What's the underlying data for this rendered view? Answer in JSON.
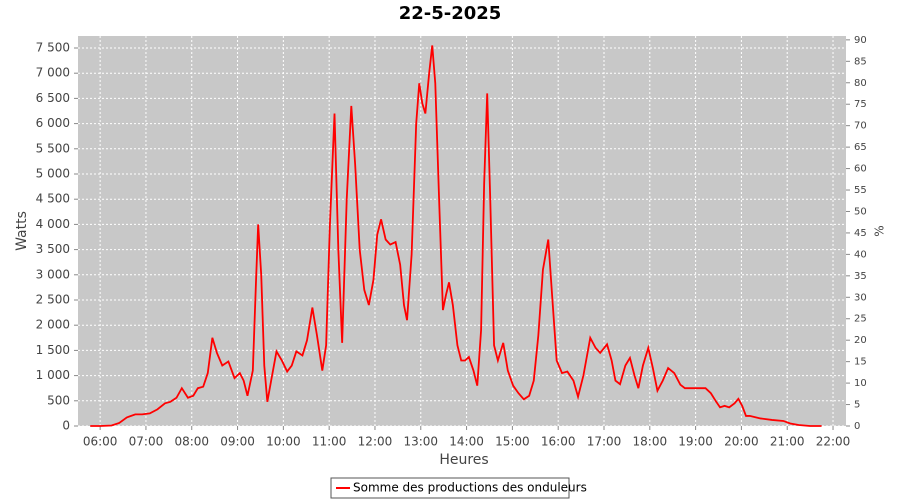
{
  "chart_data": {
    "type": "line",
    "title": "22-5-2025",
    "x_label": "Heures",
    "y_label": "Watts",
    "y2_label": "%",
    "x": [
      "05:47",
      "06:00",
      "06:15",
      "06:25",
      "06:35",
      "06:46",
      "06:55",
      "07:05",
      "07:15",
      "07:25",
      "07:32",
      "07:40",
      "07:47",
      "07:55",
      "08:02",
      "08:08",
      "08:15",
      "08:21",
      "08:27",
      "08:33",
      "08:40",
      "08:48",
      "08:56",
      "09:03",
      "09:08",
      "09:13",
      "09:20",
      "09:24",
      "09:27",
      "09:31",
      "09:35",
      "09:39",
      "09:44",
      "09:51",
      "09:58",
      "10:05",
      "10:11",
      "10:17",
      "10:25",
      "10:31",
      "10:38",
      "10:44",
      "10:51",
      "10:56",
      "11:01",
      "11:07",
      "11:12",
      "11:17",
      "11:23",
      "11:29",
      "11:34",
      "11:40",
      "11:46",
      "11:52",
      "11:58",
      "12:03",
      "12:08",
      "12:14",
      "12:20",
      "12:27",
      "12:33",
      "12:38",
      "12:42",
      "12:48",
      "12:54",
      "12:58",
      "13:02",
      "13:06",
      "13:11",
      "13:15",
      "13:19",
      "13:24",
      "13:29",
      "13:33",
      "13:37",
      "13:42",
      "13:48",
      "13:53",
      "13:58",
      "14:03",
      "14:09",
      "14:14",
      "14:19",
      "14:23",
      "14:27",
      "14:31",
      "14:36",
      "14:41",
      "14:48",
      "14:54",
      "15:01",
      "15:08",
      "15:15",
      "15:22",
      "15:28",
      "15:34",
      "15:40",
      "15:47",
      "15:52",
      "15:58",
      "16:05",
      "16:12",
      "16:20",
      "16:26",
      "16:33",
      "16:42",
      "16:49",
      "16:55",
      "17:04",
      "17:10",
      "17:15",
      "17:21",
      "17:28",
      "17:34",
      "17:40",
      "17:45",
      "17:51",
      "17:58",
      "18:04",
      "18:10",
      "18:17",
      "18:24",
      "18:32",
      "18:40",
      "18:46",
      "18:55",
      "19:05",
      "19:13",
      "19:20",
      "19:27",
      "19:32",
      "19:38",
      "19:44",
      "19:51",
      "19:56",
      "20:01",
      "20:06",
      "20:11",
      "20:25",
      "20:40",
      "20:55",
      "21:04",
      "21:15",
      "21:30",
      "21:45"
    ],
    "series": [
      {
        "name": "Somme des productions des onduleurs",
        "color": "#ff0000",
        "values": [
          0,
          0,
          10,
          60,
          170,
          230,
          230,
          250,
          330,
          450,
          480,
          560,
          750,
          560,
          600,
          750,
          780,
          1050,
          1750,
          1450,
          1200,
          1280,
          950,
          1050,
          900,
          600,
          1100,
          2800,
          4000,
          3000,
          1200,
          480,
          900,
          1480,
          1300,
          1080,
          1200,
          1480,
          1400,
          1700,
          2350,
          1800,
          1100,
          1600,
          4000,
          6200,
          3500,
          1650,
          4500,
          6350,
          5200,
          3500,
          2700,
          2400,
          2900,
          3800,
          4100,
          3700,
          3600,
          3650,
          3200,
          2400,
          2100,
          3400,
          6000,
          6800,
          6400,
          6200,
          7000,
          7550,
          6800,
          4500,
          2300,
          2600,
          2850,
          2400,
          1600,
          1300,
          1300,
          1370,
          1100,
          800,
          1900,
          4800,
          6600,
          4500,
          1600,
          1300,
          1650,
          1100,
          800,
          650,
          530,
          600,
          900,
          1800,
          3100,
          3700,
          2600,
          1300,
          1050,
          1080,
          900,
          580,
          1000,
          1750,
          1550,
          1450,
          1620,
          1300,
          900,
          830,
          1200,
          1350,
          1000,
          750,
          1200,
          1550,
          1150,
          700,
          900,
          1150,
          1050,
          820,
          750,
          750,
          750,
          750,
          650,
          480,
          370,
          400,
          370,
          450,
          540,
          400,
          200,
          200,
          150,
          120,
          100,
          50,
          20,
          0,
          0
        ]
      }
    ],
    "xlim": [
      "05:31",
      "22:17"
    ],
    "xticks": [
      "06:00",
      "07:00",
      "08:00",
      "09:00",
      "10:00",
      "11:00",
      "12:00",
      "13:00",
      "14:00",
      "15:00",
      "16:00",
      "17:00",
      "18:00",
      "19:00",
      "20:00",
      "21:00",
      "22:00"
    ],
    "ylim": [
      0,
      7738
    ],
    "yticks": [
      0,
      500,
      {
        "value": 1000,
        "label": "1 000"
      },
      {
        "value": 1500,
        "label": "1 500"
      },
      {
        "value": 2000,
        "label": "2 000"
      },
      {
        "value": 2500,
        "label": "2 500"
      },
      {
        "value": 3000,
        "label": "3 000"
      },
      {
        "value": 3500,
        "label": "3 500"
      },
      {
        "value": 4000,
        "label": "4 000"
      },
      {
        "value": 4500,
        "label": "4 500"
      },
      {
        "value": 5000,
        "label": "5 000"
      },
      {
        "value": 5500,
        "label": "5 500"
      },
      {
        "value": 6000,
        "label": "6 000"
      },
      {
        "value": 6500,
        "label": "6 500"
      },
      {
        "value": 7000,
        "label": "7 000"
      },
      {
        "value": 7500,
        "label": "7 500"
      }
    ],
    "y2lim": [
      0,
      90.9
    ],
    "y2ticks": [
      0,
      5,
      10,
      15,
      20,
      25,
      30,
      35,
      40,
      45,
      50,
      55,
      60,
      65,
      70,
      75,
      80,
      85,
      90
    ],
    "grid": true
  }
}
